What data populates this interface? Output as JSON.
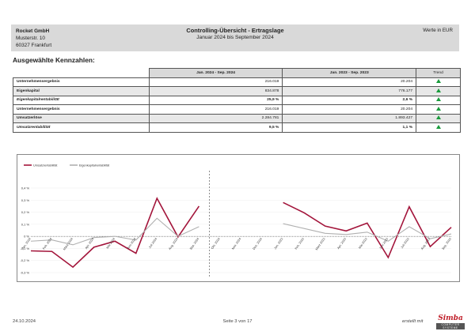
{
  "header": {
    "company": "Rocket GmbH",
    "street": "Musterstr. 10",
    "city": "60327 Frankfurt",
    "title": "Controlling-Übersicht - Ertragslage",
    "subtitle": "Januar 2024 bis September 2024",
    "currency_note": "Werte in EUR"
  },
  "section_title": "Ausgewählte Kennzahlen:",
  "table": {
    "columns": [
      "Jan. 2024 - Sep. 2024",
      "Jan. 2023 - Sep. 2023",
      "Trend"
    ],
    "rows": [
      {
        "label": "Unternehmensergebnis",
        "current": "216.019",
        "previous": "20.204",
        "trend": "up"
      },
      {
        "label": "Eigenkapital",
        "current": "834.878",
        "previous": "776.177",
        "trend": "up"
      },
      {
        "label": "Eigenkapitalrentabilität",
        "current": "25,9 %",
        "previous": "2,6 %",
        "trend": "up"
      },
      {
        "label": "Unternehmensergebnis",
        "current": "216.019",
        "previous": "20.204",
        "trend": "up"
      },
      {
        "label": "Umsatzerlöse",
        "current": "2.284.781",
        "previous": "1.893.427",
        "trend": "up"
      },
      {
        "label": "Umsatzrentabilität",
        "current": "9,5 %",
        "previous": "1,1 %",
        "trend": "up"
      }
    ]
  },
  "chart_data": {
    "type": "line",
    "series": [
      {
        "name": "Umsatzrentabilität",
        "color": "#a3153b",
        "values": [
          -0.12,
          -0.125,
          -0.255,
          -0.09,
          -0.04,
          -0.14,
          0.315,
          -0.005,
          0.25,
          null,
          null,
          null,
          0.28,
          0.195,
          0.085,
          0.045,
          0.11,
          -0.175,
          0.245,
          -0.085,
          0.075
        ]
      },
      {
        "name": "Eigenkapitalrentabilität",
        "color": "#b0b0b0",
        "values": [
          -0.04,
          -0.03,
          -0.07,
          -0.01,
          0.0,
          -0.03,
          0.15,
          0.0,
          0.08,
          null,
          null,
          null,
          0.105,
          0.065,
          0.025,
          0.015,
          0.035,
          -0.04,
          0.08,
          -0.02,
          0.02
        ]
      }
    ],
    "categories": [
      "Jan. 2024",
      "Feb. 2024",
      "März 2024",
      "Apr. 2024",
      "Mai 2024",
      "Juni 2024",
      "Juli 2024",
      "Aug. 2024",
      "Sep. 2024",
      "Okt. 2024",
      "Nov. 2024",
      "Dez. 2024",
      "Jan. 2023",
      "Feb. 2023",
      "März 2023",
      "Apr. 2023",
      "Mai 2023",
      "Juni 2023",
      "Juli 2023",
      "Aug. 2023",
      "Sep. 2023"
    ],
    "yticks": [
      "0,4 %",
      "0,3 %",
      "0,2 %",
      "0,1 %",
      "0 %",
      "-0,1 %",
      "-0,2 %",
      "-0,3 %"
    ],
    "ylim": [
      -0.3,
      0.4
    ]
  },
  "footer": {
    "date": "24.10.2024",
    "page": "Seite 3 von 17",
    "created_with": "erstellt mit",
    "logo_text": "Simba",
    "logo_sub": "COMPUTER SYSTEME"
  }
}
